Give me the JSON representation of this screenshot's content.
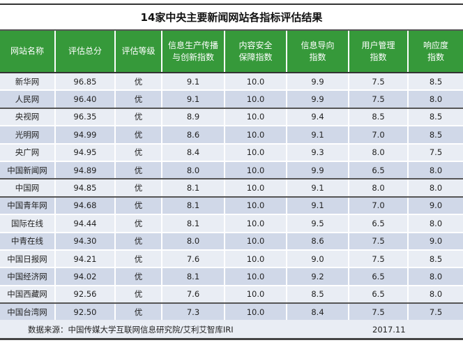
{
  "title": "14家中央主要新闻网站各指标评估结果",
  "headers": [
    "网站名称",
    "评估总分",
    "评估等级",
    "信息生产传播\n与创新指数",
    "内容安全\n保障指数",
    "信息导向\n指数",
    "用户管理\n指数",
    "响应度\n指数"
  ],
  "rows": [
    [
      "新华网",
      "96.85",
      "优",
      "9.1",
      "10.0",
      "9.9",
      "7.5",
      "8.5"
    ],
    [
      "人民网",
      "96.40",
      "优",
      "9.1",
      "10.0",
      "9.9",
      "7.5",
      "8.0"
    ],
    [
      "央视网",
      "96.35",
      "优",
      "8.9",
      "10.0",
      "9.4",
      "8.5",
      "8.5"
    ],
    [
      "光明网",
      "94.99",
      "优",
      "8.6",
      "10.0",
      "9.1",
      "7.0",
      "8.5"
    ],
    [
      "央广网",
      "94.95",
      "优",
      "8.4",
      "10.0",
      "9.3",
      "8.0",
      "7.5"
    ],
    [
      "中国新闻网",
      "94.89",
      "优",
      "8.0",
      "10.0",
      "9.9",
      "6.5",
      "8.0"
    ],
    [
      "中国网",
      "94.85",
      "优",
      "8.1",
      "10.0",
      "9.1",
      "8.0",
      "8.0"
    ],
    [
      "中国青年网",
      "94.68",
      "优",
      "8.1",
      "10.0",
      "9.1",
      "7.0",
      "9.0"
    ],
    [
      "国际在线",
      "94.44",
      "优",
      "8.1",
      "10.0",
      "9.5",
      "6.5",
      "8.0"
    ],
    [
      "中青在线",
      "94.30",
      "优",
      "8.0",
      "10.0",
      "8.6",
      "7.5",
      "9.0"
    ],
    [
      "中国日报网",
      "94.21",
      "优",
      "7.6",
      "10.0",
      "9.0",
      "7.5",
      "8.5"
    ],
    [
      "中国经济网",
      "94.02",
      "优",
      "8.1",
      "10.0",
      "9.2",
      "6.5",
      "8.0"
    ],
    [
      "中国西藏网",
      "92.56",
      "优",
      "7.6",
      "10.0",
      "8.5",
      "6.5",
      "8.0"
    ],
    [
      "中国台湾网",
      "92.50",
      "优",
      "7.3",
      "10.0",
      "8.4",
      "7.5",
      "7.5"
    ]
  ],
  "footer": {
    "source": "数据来源：中国传媒大学互联网信息研究院/艾利艾智库IRI",
    "date": "2017.11"
  },
  "colors": {
    "header_bg": "#36993a",
    "row_light": "#e9edf4",
    "row_dark": "#d0d8e8"
  }
}
